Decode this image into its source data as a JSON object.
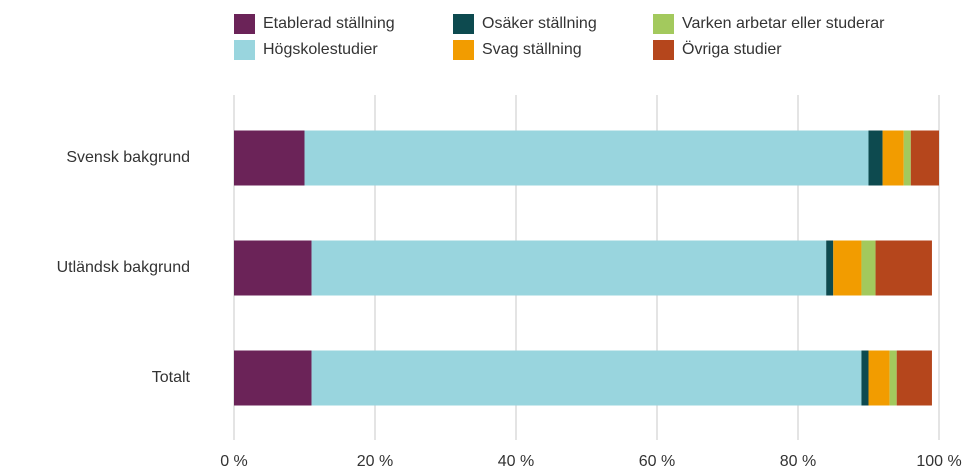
{
  "chart_data": {
    "type": "stacked-barh",
    "categories": [
      "Svensk bakgrund",
      "Utländsk bakgrund",
      "Totalt"
    ],
    "series": [
      {
        "name": "Etablerad ställning",
        "color": "#6b2358",
        "values": [
          10,
          11,
          11
        ]
      },
      {
        "name": "Högskolestudier",
        "color": "#99d5de",
        "values": [
          80,
          73,
          78
        ]
      },
      {
        "name": "Osäker ställning",
        "color": "#0d4a4f",
        "values": [
          2,
          1,
          1
        ]
      },
      {
        "name": "Svag ställning",
        "color": "#f29c00",
        "values": [
          3,
          4,
          3
        ]
      },
      {
        "name": "Varken arbetar eller studerar",
        "color": "#a3c95d",
        "values": [
          1,
          2,
          1
        ]
      },
      {
        "name": "Övriga studier",
        "color": "#b5461c",
        "values": [
          4,
          8,
          5
        ]
      }
    ],
    "xlim": [
      0,
      100
    ],
    "xticks": [
      {
        "value": 0,
        "label": "0 %"
      },
      {
        "value": 20,
        "label": "20 %"
      },
      {
        "value": 40,
        "label": "40 %"
      },
      {
        "value": 60,
        "label": "60 %"
      },
      {
        "value": 80,
        "label": "80 %"
      },
      {
        "value": 100,
        "label": "100 %"
      }
    ],
    "grid": true,
    "legend": "top"
  }
}
